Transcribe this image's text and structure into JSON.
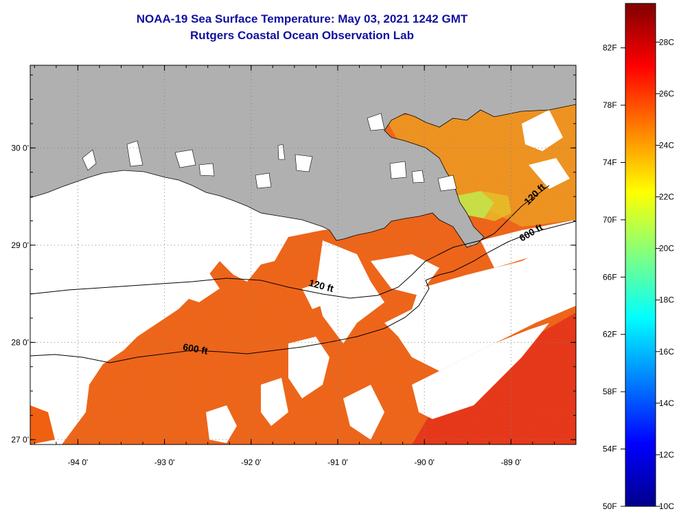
{
  "title": "NOAA-19 Sea Surface Temperature:  May 03, 2021 1242 GMT",
  "subtitle": "Rutgers Coastal Ocean Observation Lab",
  "map": {
    "lon_range": [
      -94.55,
      -88.25
    ],
    "lat_range": [
      26.95,
      30.85
    ],
    "lon_ticks": [
      {
        "value": -94,
        "label": "-94 0'"
      },
      {
        "value": -93,
        "label": "-93 0'"
      },
      {
        "value": -92,
        "label": "-92 0'"
      },
      {
        "value": -91,
        "label": "-91 0'"
      },
      {
        "value": -90,
        "label": "-90 0'"
      },
      {
        "value": -89,
        "label": "-89 0'"
      }
    ],
    "lat_ticks": [
      {
        "value": 27,
        "label": "27 0'"
      },
      {
        "value": 28,
        "label": "28 0'"
      },
      {
        "value": 29,
        "label": "29 0'"
      },
      {
        "value": 30,
        "label": "30 0'"
      }
    ],
    "contour_labels": [
      {
        "text": "120 ft",
        "lon": -91.2,
        "lat": 28.55
      },
      {
        "text": "600 ft",
        "lon": -92.65,
        "lat": 27.9
      },
      {
        "text": "120 ft",
        "lon": -88.7,
        "lat": 29.5
      },
      {
        "text": "600 ft",
        "lon": -88.75,
        "lat": 29.1
      }
    ],
    "colors": {
      "land": "#b0b0b0",
      "cloud": "#ffffff",
      "sst_main": "#f06010",
      "sst_warm": "#e83010",
      "sst_cool": "#f09018",
      "sst_plume": "#c8e040"
    }
  },
  "colorbar": {
    "fahrenheit_labels": [
      "50F",
      "54F",
      "58F",
      "62F",
      "66F",
      "70F",
      "74F",
      "78F",
      "82F"
    ],
    "fahrenheit_values": [
      50,
      54,
      58,
      62,
      66,
      70,
      74,
      78,
      82
    ],
    "celsius_labels": [
      "10C",
      "12C",
      "14C",
      "16C",
      "18C",
      "20C",
      "22C",
      "24C",
      "26C",
      "28C"
    ],
    "celsius_values": [
      10,
      12,
      14,
      16,
      18,
      20,
      22,
      24,
      26,
      28
    ],
    "range_c": [
      10,
      29.5
    ],
    "stops": [
      "#00008c",
      "#0000ff",
      "#0080ff",
      "#00ffff",
      "#80ff80",
      "#ffff00",
      "#ff8000",
      "#ff0000",
      "#800000"
    ]
  }
}
